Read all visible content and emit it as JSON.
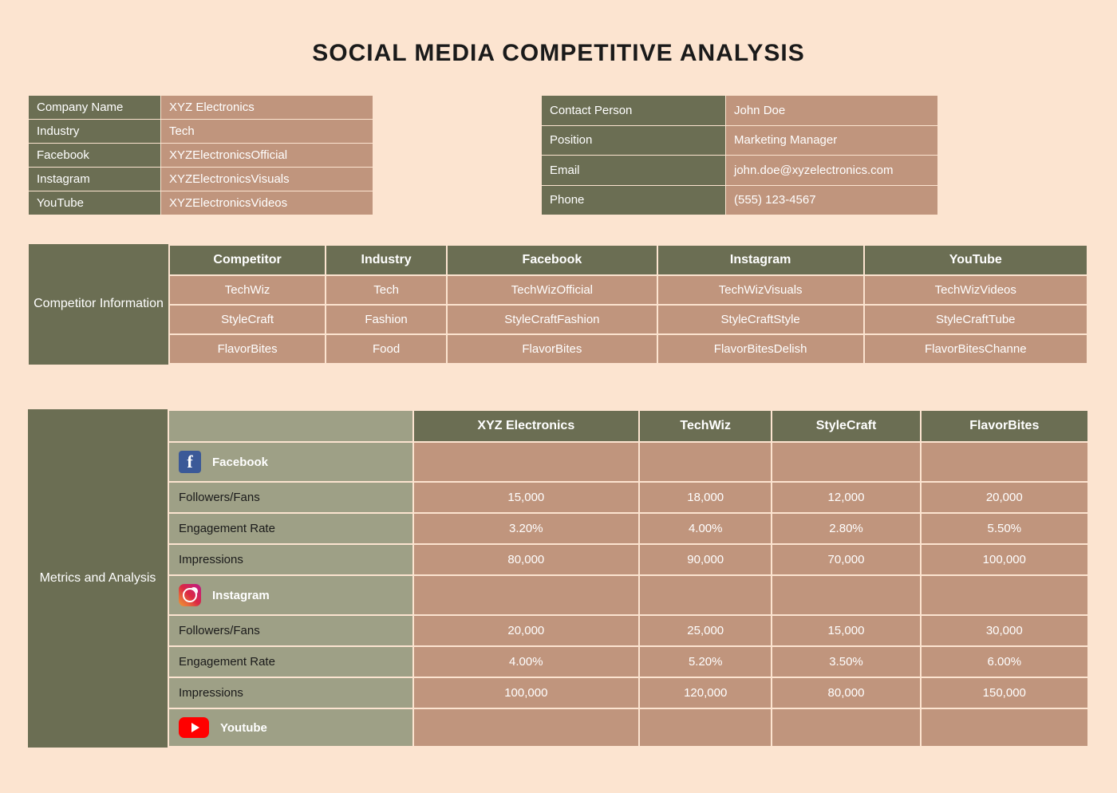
{
  "title": "SOCIAL MEDIA COMPETITIVE ANALYSIS",
  "colors": {
    "page_bg": "#fce4d0",
    "olive": "#6b6e53",
    "tan": "#c0957d",
    "sage": "#9ea086",
    "title_text": "#1a1a1a"
  },
  "company": {
    "labels": {
      "name": "Company Name",
      "industry": "Industry",
      "facebook": "Facebook",
      "instagram": "Instagram",
      "youtube": "YouTube"
    },
    "values": {
      "name": "XYZ Electronics",
      "industry": "Tech",
      "facebook": "XYZElectronicsOfficial",
      "instagram": "XYZElectronicsVisuals",
      "youtube": "XYZElectronicsVideos"
    }
  },
  "contact": {
    "labels": {
      "person": "Contact Person",
      "position": "Position",
      "email": "Email",
      "phone": "Phone"
    },
    "values": {
      "person": "John Doe",
      "position": "Marketing Manager",
      "email": "john.doe@xyzelectronics.com",
      "phone": "(555) 123-4567"
    }
  },
  "competitor_section": {
    "title": "Competitor Information",
    "headers": {
      "competitor": "Competitor",
      "industry": "Industry",
      "facebook": "Facebook",
      "instagram": "Instagram",
      "youtube": "YouTube"
    },
    "rows": [
      {
        "competitor": "TechWiz",
        "industry": "Tech",
        "facebook": "TechWizOfficial",
        "instagram": "TechWizVisuals",
        "youtube": "TechWizVideos"
      },
      {
        "competitor": "StyleCraft",
        "industry": "Fashion",
        "facebook": "StyleCraftFashion",
        "instagram": "StyleCraftStyle",
        "youtube": "StyleCraftTube"
      },
      {
        "competitor": "FlavorBites",
        "industry": "Food",
        "facebook": "FlavorBites",
        "instagram": "FlavorBitesDelish",
        "youtube": "FlavorBitesChanne"
      }
    ]
  },
  "metrics_section": {
    "title": "Metrics and Analysis",
    "col_headers": {
      "c1": "XYZ Electronics",
      "c2": "TechWiz",
      "c3": "StyleCraft",
      "c4": "FlavorBites"
    },
    "platforms": {
      "facebook": "Facebook",
      "instagram": "Instagram",
      "youtube": "Youtube"
    },
    "metric_labels": {
      "followers": "Followers/Fans",
      "engagement": "Engagement Rate",
      "impressions": "Impressions"
    },
    "facebook": {
      "followers": {
        "c1": "15,000",
        "c2": "18,000",
        "c3": "12,000",
        "c4": "20,000"
      },
      "engagement": {
        "c1": "3.20%",
        "c2": "4.00%",
        "c3": "2.80%",
        "c4": "5.50%"
      },
      "impressions": {
        "c1": "80,000",
        "c2": "90,000",
        "c3": "70,000",
        "c4": "100,000"
      }
    },
    "instagram": {
      "followers": {
        "c1": "20,000",
        "c2": "25,000",
        "c3": "15,000",
        "c4": "30,000"
      },
      "engagement": {
        "c1": "4.00%",
        "c2": "5.20%",
        "c3": "3.50%",
        "c4": "6.00%"
      },
      "impressions": {
        "c1": "100,000",
        "c2": "120,000",
        "c3": "80,000",
        "c4": "150,000"
      }
    }
  }
}
